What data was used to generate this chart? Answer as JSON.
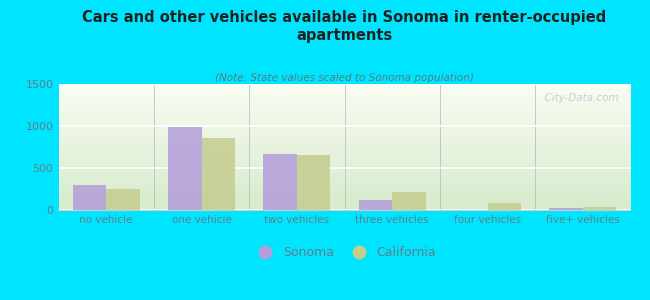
{
  "title": "Cars and other vehicles available in Sonoma in renter-occupied\napartments",
  "subtitle": "(Note: State values scaled to Sonoma population)",
  "categories": [
    "no vehicle",
    "one vehicle",
    "two vehicles",
    "three vehicles",
    "four vehicles",
    "five+ vehicles"
  ],
  "sonoma_values": [
    300,
    985,
    665,
    120,
    5,
    25
  ],
  "california_values": [
    250,
    855,
    655,
    210,
    80,
    35
  ],
  "sonoma_color": "#b39ddb",
  "california_color": "#c5cc8e",
  "background_color": "#00e5ff",
  "title_color": "#212121",
  "subtitle_color": "#5a7a7a",
  "axis_color": "#607d8b",
  "ylim": [
    0,
    1500
  ],
  "yticks": [
    0,
    500,
    1000,
    1500
  ],
  "watermark": "  City-Data.com",
  "legend_sonoma": "Sonoma",
  "legend_california": "California",
  "bar_width": 0.35
}
